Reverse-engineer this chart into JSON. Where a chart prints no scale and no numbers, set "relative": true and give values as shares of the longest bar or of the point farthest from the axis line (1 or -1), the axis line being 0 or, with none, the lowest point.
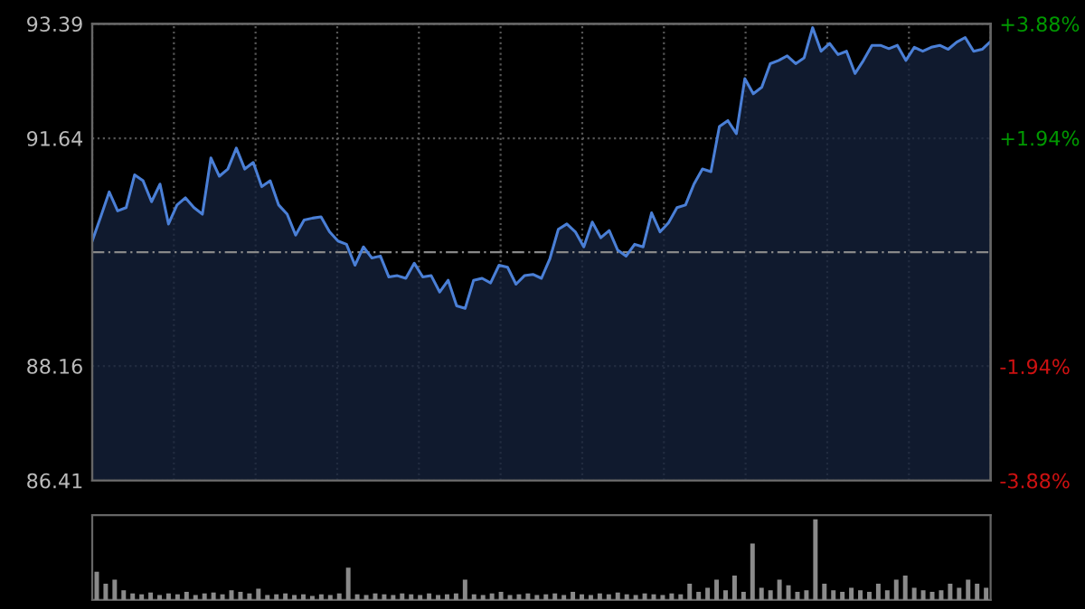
{
  "chart_data": [
    {
      "type": "area",
      "categories": [
        null,
        null,
        null,
        null,
        null,
        null,
        null,
        null,
        null,
        null,
        null,
        null,
        null,
        null,
        null,
        null,
        null,
        null,
        null,
        null,
        null,
        null,
        null,
        null,
        null,
        null,
        null,
        null,
        null,
        null,
        null,
        null,
        null,
        null,
        null,
        null,
        null,
        null,
        null,
        null,
        null,
        null,
        null,
        null,
        null,
        null,
        null,
        null,
        null,
        null,
        null,
        null,
        null,
        null,
        null,
        null,
        null,
        null,
        null,
        null,
        null,
        null,
        null,
        null,
        null,
        null,
        null,
        null,
        null,
        null,
        null,
        null,
        null,
        null,
        null,
        null,
        null,
        null,
        null,
        null,
        null,
        null,
        null,
        null,
        null,
        null,
        null,
        null,
        null,
        null,
        null,
        null,
        null,
        null,
        null,
        null,
        null,
        null,
        null,
        null,
        null,
        null,
        null,
        null,
        null,
        null,
        null
      ],
      "series": [
        {
          "color": "#4a7fd6",
          "values": [
            90.07,
            90.44,
            90.82,
            90.53,
            90.58,
            91.08,
            90.99,
            90.67,
            90.94,
            90.33,
            90.62,
            90.73,
            90.58,
            90.48,
            91.34,
            91.06,
            91.17,
            91.49,
            91.17,
            91.27,
            90.9,
            90.99,
            90.62,
            90.48,
            90.16,
            90.39,
            90.42,
            90.44,
            90.21,
            90.07,
            90.02,
            89.7,
            89.98,
            89.81,
            89.84,
            89.52,
            89.54,
            89.5,
            89.73,
            89.52,
            89.54,
            89.29,
            89.47,
            89.08,
            89.04,
            89.47,
            89.5,
            89.43,
            89.7,
            89.67,
            89.41,
            89.54,
            89.56,
            89.5,
            89.8,
            90.25,
            90.33,
            90.21,
            89.98,
            90.36,
            90.12,
            90.23,
            89.93,
            89.84,
            90.02,
            89.98,
            90.5,
            90.21,
            90.35,
            90.58,
            90.62,
            90.94,
            91.17,
            91.13,
            91.82,
            91.91,
            91.71,
            92.55,
            92.32,
            92.42,
            92.78,
            92.83,
            92.9,
            92.78,
            92.87,
            93.33,
            92.97,
            93.09,
            92.92,
            92.97,
            92.63,
            92.83,
            93.06,
            93.06,
            93.01,
            93.06,
            92.83,
            93.03,
            92.97,
            93.03,
            93.06,
            93.0,
            93.11,
            93.18,
            92.97,
            93.0,
            93.12
          ]
        }
      ],
      "ylim": [
        86.41,
        93.39
      ],
      "yticks": [
        86.41,
        88.16,
        91.64,
        93.39
      ],
      "y2lim": [
        -3.88,
        3.88
      ],
      "y2ticks": [
        {
          "value": -3.88,
          "label": "-3.88%"
        },
        {
          "value": -1.94,
          "label": "-1.94%"
        },
        {
          "value": 1.94,
          "label": "+1.94%"
        },
        {
          "value": 3.88,
          "label": "+3.88%"
        }
      ],
      "ref_lines": [
        {
          "axis": "y",
          "value": 89.9,
          "label": null,
          "color": "#888888",
          "line_style": "dashed"
        }
      ],
      "grid": true,
      "tick_labels": "y",
      "legend": false
    },
    {
      "type": "bar",
      "relative": true,
      "color": "#8a8a8a",
      "categories": [
        null,
        null,
        null,
        null,
        null,
        null,
        null,
        null,
        null,
        null,
        null,
        null,
        null,
        null,
        null,
        null,
        null,
        null,
        null,
        null,
        null,
        null,
        null,
        null,
        null,
        null,
        null,
        null,
        null,
        null,
        null,
        null,
        null,
        null,
        null,
        null,
        null,
        null,
        null,
        null,
        null,
        null,
        null,
        null,
        null,
        null,
        null,
        null,
        null,
        null,
        null,
        null,
        null,
        null,
        null,
        null,
        null,
        null,
        null,
        null,
        null,
        null,
        null,
        null,
        null,
        null,
        null,
        null,
        null,
        null,
        null,
        null,
        null,
        null,
        null,
        null,
        null,
        null,
        null,
        null,
        null,
        null,
        null,
        null,
        null,
        null,
        null,
        null,
        null,
        null,
        null,
        null,
        null,
        null,
        null,
        null,
        null,
        null,
        null,
        null
      ],
      "values": [
        0.35,
        0.2,
        0.25,
        0.12,
        0.08,
        0.07,
        0.09,
        0.06,
        0.08,
        0.07,
        0.1,
        0.06,
        0.08,
        0.09,
        0.07,
        0.12,
        0.1,
        0.08,
        0.14,
        0.06,
        0.07,
        0.08,
        0.06,
        0.07,
        0.05,
        0.07,
        0.06,
        0.08,
        0.4,
        0.07,
        0.06,
        0.08,
        0.07,
        0.06,
        0.08,
        0.07,
        0.06,
        0.08,
        0.06,
        0.07,
        0.08,
        0.25,
        0.07,
        0.06,
        0.08,
        0.1,
        0.06,
        0.07,
        0.08,
        0.06,
        0.07,
        0.08,
        0.06,
        0.1,
        0.07,
        0.06,
        0.08,
        0.07,
        0.09,
        0.07,
        0.06,
        0.08,
        0.07,
        0.06,
        0.08,
        0.07,
        0.2,
        0.1,
        0.15,
        0.25,
        0.12,
        0.3,
        0.1,
        0.7,
        0.15,
        0.12,
        0.25,
        0.18,
        0.1,
        0.12,
        1.0,
        0.2,
        0.12,
        0.1,
        0.15,
        0.12,
        0.1,
        0.2,
        0.12,
        0.25,
        0.3,
        0.15,
        0.12,
        0.1,
        0.12,
        0.2,
        0.15,
        0.25,
        0.2,
        0.15
      ],
      "grid": false,
      "legend": false
    }
  ]
}
